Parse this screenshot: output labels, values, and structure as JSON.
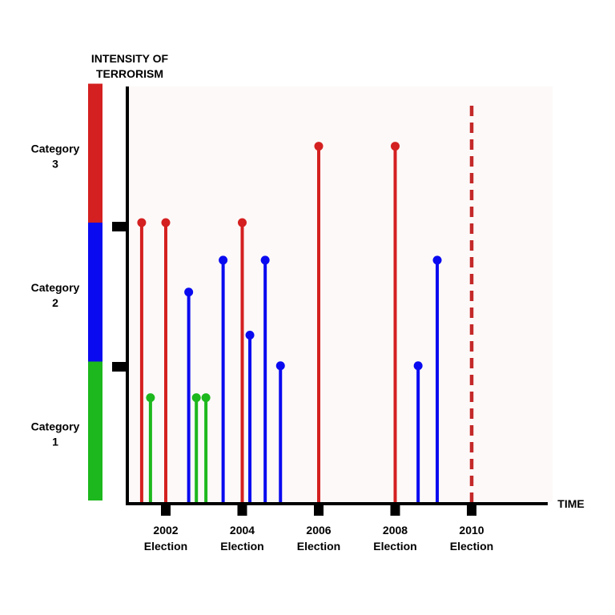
{
  "chart_data": {
    "type": "lollipop",
    "ylabel": [
      "INTENSITY OF",
      "TERRORISM"
    ],
    "xlabel": "TIME",
    "categories": [
      {
        "label": [
          "Category",
          "1"
        ],
        "color": "#1db81d"
      },
      {
        "label": [
          "Category",
          "2"
        ],
        "color": "#0a0af0"
      },
      {
        "label": [
          "Category",
          "3"
        ],
        "color": "#d42020"
      }
    ],
    "ylim": [
      0,
      3
    ],
    "xlim": [
      2000.0,
      2012.0
    ],
    "xticks": [
      {
        "x": 2002,
        "year": "2002",
        "label": "Election"
      },
      {
        "x": 2004,
        "year": "2004",
        "label": "Election"
      },
      {
        "x": 2006,
        "year": "2006",
        "label": "Election"
      },
      {
        "x": 2008,
        "year": "2008",
        "label": "Election"
      },
      {
        "x": 2010,
        "year": "2010",
        "label": "Election"
      }
    ],
    "series": [
      {
        "category": 3,
        "color": "#d42020",
        "points": [
          [
            2001.37,
            2.0
          ],
          [
            2002.0,
            2.0
          ],
          [
            2004.0,
            2.0
          ],
          [
            2006.0,
            2.55
          ],
          [
            2008.0,
            2.55
          ]
        ]
      },
      {
        "category": 2,
        "color": "#0a0af0",
        "points": [
          [
            2002.6,
            1.5
          ],
          [
            2003.5,
            1.73
          ],
          [
            2004.2,
            1.19
          ],
          [
            2004.6,
            1.73
          ],
          [
            2005.0,
            0.97
          ],
          [
            2008.6,
            0.97
          ],
          [
            2009.1,
            1.73
          ]
        ]
      },
      {
        "category": 1,
        "color": "#1db81d",
        "points": [
          [
            2001.6,
            0.74
          ],
          [
            2002.8,
            0.74
          ],
          [
            2003.05,
            0.74
          ]
        ]
      }
    ],
    "reference_line": {
      "x": 2010,
      "style": "dashed",
      "color": "#c42828"
    }
  }
}
